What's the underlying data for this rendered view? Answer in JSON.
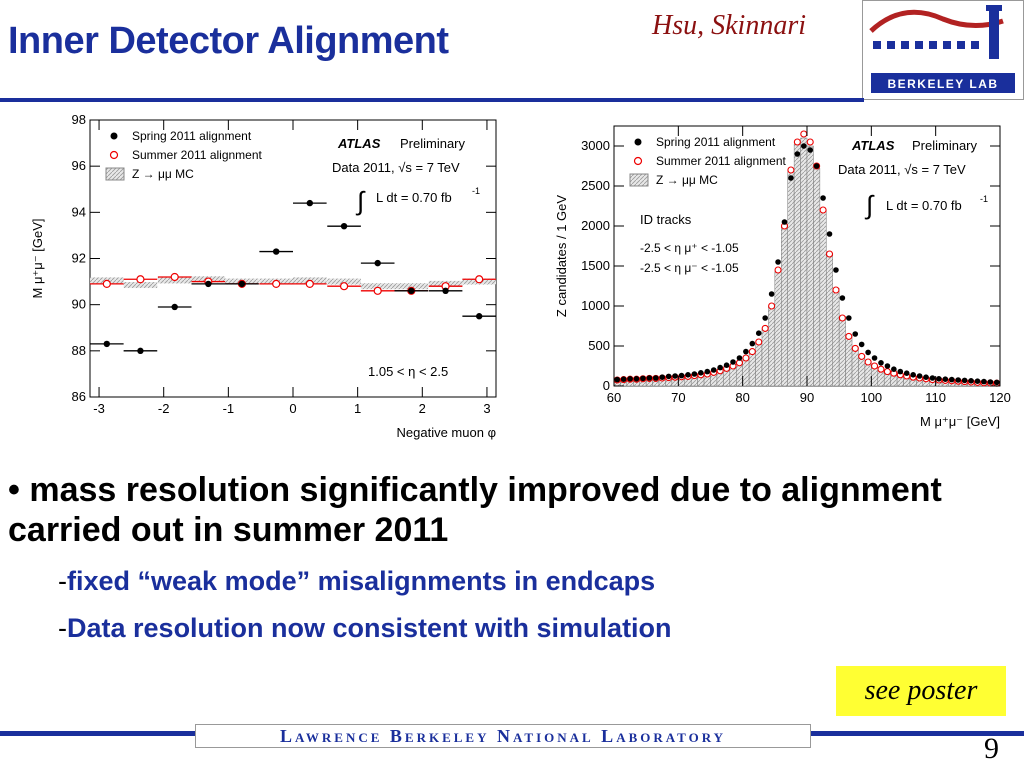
{
  "slide": {
    "title": "Inner Detector Alignment",
    "authors": "Hsu, Skinnari",
    "logo_text": "BERKELEY LAB",
    "bullet_main": "mass resolution significantly improved due to alignment carried out in summer 2011",
    "bullet_marker": "•",
    "sub_dash": "-",
    "sub1": "fixed “weak mode” misalignments in endcaps",
    "sub2": "Data resolution now consistent with simulation",
    "poster": "see poster",
    "footer": "Lawrence Berkeley National Laboratory",
    "page_number": "9",
    "colors": {
      "title": "#1a2f9c",
      "authors": "#8b1010",
      "accent": "#1a2f9c",
      "poster_bg": "#ffff33"
    }
  },
  "chart_data": [
    {
      "type": "scatter",
      "xlabel": "Negative muon  φ",
      "ylabel": "M μ⁺μ⁻ [GeV]",
      "xlim": [
        -3.14,
        3.14
      ],
      "ylim": [
        86,
        98
      ],
      "xticks": [
        "-3",
        "-2",
        "-1",
        "0",
        "1",
        "2",
        "3"
      ],
      "xtick_values": [
        -3,
        -2,
        -1,
        0,
        1,
        2,
        3
      ],
      "yticks": [
        "86",
        "88",
        "90",
        "92",
        "94",
        "96",
        "98"
      ],
      "ytick_values": [
        86,
        88,
        90,
        92,
        94,
        96,
        98
      ],
      "legend": [
        "Spring 2011 alignment",
        "Summer 2011 alignment",
        "Z → μμ MC"
      ],
      "atlas": "ATLAS",
      "preliminary": "Preliminary",
      "data_label": "Data 2011, √s = 7 TeV",
      "lumi": "L dt = 0.70 fb",
      "lumi_exp": "-1",
      "region": "1.05 < η < 2.5",
      "x_centers": [
        -2.88,
        -2.36,
        -1.83,
        -1.31,
        -0.79,
        -0.26,
        0.26,
        0.79,
        1.31,
        1.83,
        2.36,
        2.88
      ],
      "bin_half_width": 0.26,
      "series": [
        {
          "name": "Spring 2011 alignment",
          "values": [
            88.3,
            88.0,
            89.9,
            90.9,
            90.9,
            92.3,
            94.4,
            93.4,
            91.8,
            90.6,
            90.6,
            89.5
          ]
        },
        {
          "name": "Summer 2011 alignment",
          "values": [
            90.9,
            91.1,
            91.2,
            91.0,
            90.9,
            90.9,
            90.9,
            90.8,
            90.6,
            90.6,
            90.8,
            91.1
          ]
        },
        {
          "name": "Z → μμ MC",
          "values": [
            91.05,
            90.85,
            91.05,
            91.1,
            91.0,
            91.0,
            91.05,
            91.0,
            90.8,
            90.8,
            90.9,
            91.0
          ]
        }
      ]
    },
    {
      "type": "bar",
      "xlabel": "M μ⁺μ⁻ [GeV]",
      "ylabel": "Z candidates / 1 GeV",
      "xlim": [
        60,
        120
      ],
      "ylim": [
        0,
        3250
      ],
      "xticks": [
        "60",
        "70",
        "80",
        "90",
        "100",
        "110",
        "120"
      ],
      "xtick_values": [
        60,
        70,
        80,
        90,
        100,
        110,
        120
      ],
      "yticks": [
        "0",
        "500",
        "1000",
        "1500",
        "2000",
        "2500",
        "3000"
      ],
      "ytick_values": [
        0,
        500,
        1000,
        1500,
        2000,
        2500,
        3000
      ],
      "legend": [
        "Spring 2011 alignment",
        "Summer 2011 alignment",
        "Z → μμ MC"
      ],
      "atlas": "ATLAS",
      "preliminary": "Preliminary",
      "data_label": "Data 2011, √s = 7 TeV",
      "lumi": "L dt = 0.70 fb",
      "lumi_exp": "-1",
      "id_tracks": "ID tracks",
      "cut1": "-2.5 < η μ⁺ < -1.05",
      "cut2": "-2.5 < η μ⁻ < -1.05",
      "x_centers": [
        60.5,
        61.5,
        62.5,
        63.5,
        64.5,
        65.5,
        66.5,
        67.5,
        68.5,
        69.5,
        70.5,
        71.5,
        72.5,
        73.5,
        74.5,
        75.5,
        76.5,
        77.5,
        78.5,
        79.5,
        80.5,
        81.5,
        82.5,
        83.5,
        84.5,
        85.5,
        86.5,
        87.5,
        88.5,
        89.5,
        90.5,
        91.5,
        92.5,
        93.5,
        94.5,
        95.5,
        96.5,
        97.5,
        98.5,
        99.5,
        100.5,
        101.5,
        102.5,
        103.5,
        104.5,
        105.5,
        106.5,
        107.5,
        108.5,
        109.5,
        110.5,
        111.5,
        112.5,
        113.5,
        114.5,
        115.5,
        116.5,
        117.5,
        118.5,
        119.5
      ],
      "series": [
        {
          "name": "Spring 2011 alignment",
          "values": [
            80,
            85,
            90,
            90,
            95,
            100,
            100,
            110,
            120,
            125,
            130,
            140,
            150,
            165,
            180,
            200,
            230,
            260,
            300,
            350,
            430,
            530,
            660,
            850,
            1150,
            1550,
            2050,
            2600,
            2900,
            3000,
            2950,
            2750,
            2350,
            1900,
            1450,
            1100,
            850,
            650,
            520,
            420,
            350,
            290,
            250,
            210,
            180,
            160,
            140,
            125,
            110,
            100,
            90,
            85,
            80,
            75,
            70,
            65,
            60,
            55,
            50,
            45
          ]
        },
        {
          "name": "Summer 2011 alignment",
          "values": [
            75,
            80,
            85,
            85,
            90,
            95,
            95,
            100,
            105,
            110,
            115,
            120,
            130,
            140,
            150,
            170,
            190,
            220,
            250,
            290,
            350,
            430,
            550,
            720,
            1000,
            1450,
            2000,
            2700,
            3050,
            3150,
            3050,
            2750,
            2200,
            1650,
            1200,
            850,
            620,
            470,
            370,
            300,
            250,
            210,
            180,
            160,
            140,
            125,
            110,
            100,
            90,
            80,
            75,
            70,
            65,
            60,
            55,
            50,
            45,
            40,
            38,
            35
          ]
        },
        {
          "name": "Z → μμ MC",
          "values": [
            80,
            80,
            85,
            85,
            90,
            90,
            95,
            100,
            105,
            110,
            115,
            120,
            130,
            140,
            150,
            165,
            185,
            210,
            240,
            280,
            340,
            420,
            540,
            710,
            990,
            1430,
            1990,
            2680,
            3020,
            3100,
            3000,
            2720,
            2200,
            1660,
            1220,
            870,
            640,
            480,
            380,
            305,
            255,
            215,
            185,
            160,
            140,
            125,
            110,
            100,
            90,
            82,
            76,
            70,
            65,
            60,
            55,
            50,
            46,
            42,
            39,
            36
          ]
        }
      ]
    }
  ]
}
